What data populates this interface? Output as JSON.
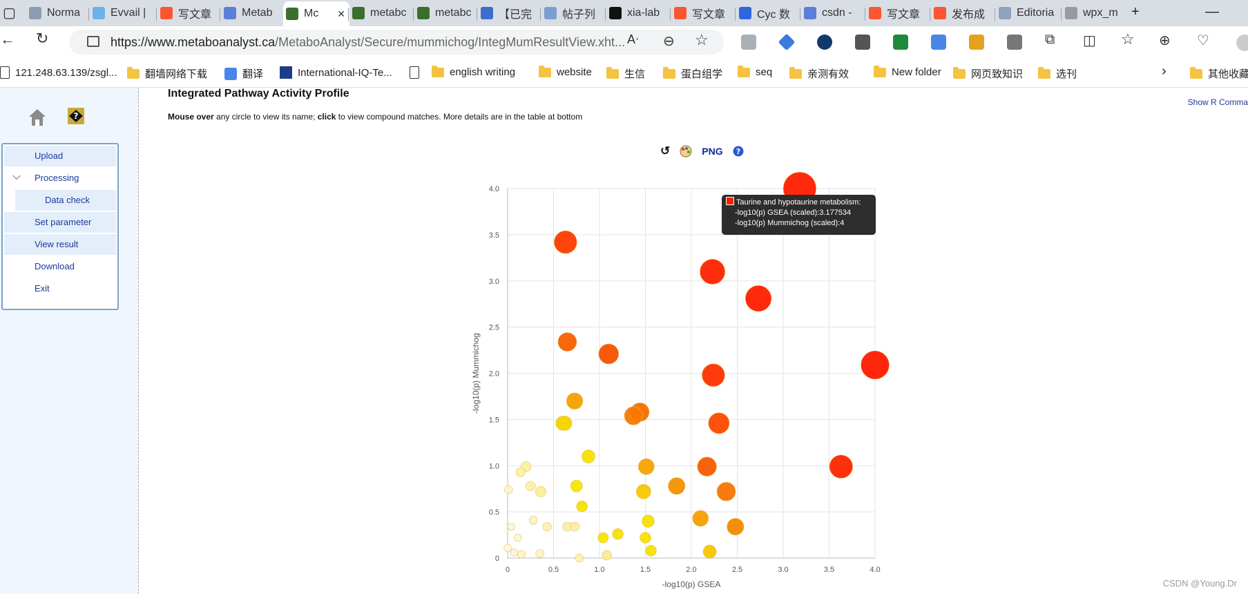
{
  "tabs": [
    {
      "label": "Norma",
      "color": "#8e9bb0"
    },
    {
      "label": "Evvail |",
      "color": "#6cb2e8"
    },
    {
      "label": "写文章",
      "color": "#fc5531"
    },
    {
      "label": "Metab",
      "color": "#5a7fd6"
    },
    {
      "label": "Mc",
      "color": "#3b6e2d",
      "active": true
    },
    {
      "label": "metabc",
      "color": "#3b6e2d"
    },
    {
      "label": "metabc",
      "color": "#3b6e2d"
    },
    {
      "label": "【已完",
      "color": "#3a6fd0"
    },
    {
      "label": "帖子列",
      "color": "#7a9fcf"
    },
    {
      "label": "xia-lab",
      "color": "#111111"
    },
    {
      "label": "写文章",
      "color": "#fc5531"
    },
    {
      "label": "Cyc 数",
      "color": "#2f66e0"
    },
    {
      "label": "csdn -",
      "color": "#5a7fd6"
    },
    {
      "label": "写文章",
      "color": "#fc5531"
    },
    {
      "label": "发布成",
      "color": "#fc5531"
    },
    {
      "label": "Editoria",
      "color": "#8fa2bd"
    },
    {
      "label": "wpx_m",
      "color": "#9a9a9a"
    }
  ],
  "url": {
    "host": "https://www.metaboanalyst.ca",
    "path": "/MetaboAnalyst/Secure/mummichog/IntegMumResultView.xht..."
  },
  "bookmarks": [
    {
      "label": "121.248.63.139/zsgl...",
      "kind": "page"
    },
    {
      "label": "翻墙网络下载",
      "kind": "folder"
    },
    {
      "label": "翻译",
      "kind": "g"
    },
    {
      "label": "International-IQ-Te...",
      "kind": "iq"
    },
    {
      "label": "",
      "kind": "page"
    },
    {
      "label": "english writing",
      "kind": "folder"
    },
    {
      "label": "website",
      "kind": "folder"
    },
    {
      "label": "生信",
      "kind": "folder"
    },
    {
      "label": "蛋白组学",
      "kind": "folder"
    },
    {
      "label": "seq",
      "kind": "folder"
    },
    {
      "label": "亲测有效",
      "kind": "folder"
    },
    {
      "label": "New folder",
      "kind": "folder"
    },
    {
      "label": "网页致知识",
      "kind": "folder"
    },
    {
      "label": "选刊",
      "kind": "folder"
    },
    {
      "label": "其他收藏",
      "kind": "folder"
    }
  ],
  "sidebar": {
    "items": [
      {
        "label": "Upload",
        "highlight": true
      },
      {
        "label": "Processing",
        "highlight": false,
        "expander": true
      },
      {
        "label": "Data check",
        "highlight": true,
        "indent": true
      },
      {
        "label": "Set parameter",
        "highlight": true
      },
      {
        "label": "View result",
        "highlight": true
      },
      {
        "label": "Download",
        "highlight": false
      },
      {
        "label": "Exit",
        "highlight": false
      }
    ]
  },
  "main": {
    "title": "Integrated Pathway Activity Profile",
    "instr_b1": "Mouse over",
    "instr_t1": " any circle to view its name; ",
    "instr_b2": "click",
    "instr_t2": " to view compound matches. More details are in the table at bottom",
    "show_r": "Show R Comma",
    "png_label": "PNG"
  },
  "tooltip": {
    "title": "Taurine and hypotaurine metabolism:",
    "line1": "-log10(p) GSEA (scaled):3.177534",
    "line2": "-log10(p) Mummichog (scaled):4"
  },
  "watermark": "CSDN @Young.Dr",
  "chart_data": {
    "type": "scatter",
    "xlabel": "-log10(p) GSEA",
    "ylabel": "-log10(p) Mummichog",
    "xlim": [
      0,
      4
    ],
    "ylim": [
      0,
      4
    ],
    "xticks": [
      "0",
      "0.5",
      "1.0",
      "1.5",
      "2.0",
      "2.5",
      "3.0",
      "3.5",
      "4.0"
    ],
    "yticks": [
      "0",
      "0.5",
      "1.0",
      "1.5",
      "2.0",
      "2.5",
      "3.0",
      "3.5",
      "4.0"
    ],
    "grid": true,
    "color_encoding": "combined significance (pale yellow to red)",
    "points": [
      {
        "x": 3.18,
        "y": 4.0,
        "s": 7.2,
        "color": "#ff1e00"
      },
      {
        "x": 0.63,
        "y": 3.42,
        "s": 5.0,
        "color": "#ff3a00"
      },
      {
        "x": 2.23,
        "y": 3.1,
        "s": 5.5,
        "color": "#ff2200"
      },
      {
        "x": 2.73,
        "y": 2.81,
        "s": 5.7,
        "color": "#ff1e00"
      },
      {
        "x": 0.65,
        "y": 2.34,
        "s": 4.1,
        "color": "#f75f00"
      },
      {
        "x": 1.1,
        "y": 2.21,
        "s": 4.4,
        "color": "#f75000"
      },
      {
        "x": 2.24,
        "y": 1.98,
        "s": 5.0,
        "color": "#ff3000"
      },
      {
        "x": 4.0,
        "y": 2.09,
        "s": 6.2,
        "color": "#ff1a00"
      },
      {
        "x": 0.73,
        "y": 1.7,
        "s": 3.6,
        "color": "#f59e00"
      },
      {
        "x": 1.44,
        "y": 1.58,
        "s": 4.1,
        "color": "#f76e00"
      },
      {
        "x": 1.37,
        "y": 1.54,
        "s": 4.0,
        "color": "#f77800"
      },
      {
        "x": 2.3,
        "y": 1.46,
        "s": 4.6,
        "color": "#fb4a00"
      },
      {
        "x": 0.6,
        "y": 1.46,
        "s": 3.1,
        "color": "#f5dc00"
      },
      {
        "x": 0.62,
        "y": 1.46,
        "s": 3.2,
        "color": "#f5d400"
      },
      {
        "x": 0.88,
        "y": 1.1,
        "s": 2.9,
        "color": "#f5e000"
      },
      {
        "x": 1.51,
        "y": 0.99,
        "s": 3.5,
        "color": "#f5a200"
      },
      {
        "x": 2.17,
        "y": 0.99,
        "s": 4.2,
        "color": "#f75c00"
      },
      {
        "x": 3.63,
        "y": 0.99,
        "s": 5.1,
        "color": "#ff2600"
      },
      {
        "x": 0.2,
        "y": 0.99,
        "s": 2.2,
        "color": "#fbf0a0"
      },
      {
        "x": 0.14,
        "y": 0.93,
        "s": 2.0,
        "color": "#faf0a6"
      },
      {
        "x": 0.75,
        "y": 0.78,
        "s": 2.6,
        "color": "#f5e600"
      },
      {
        "x": 0.25,
        "y": 0.78,
        "s": 2.1,
        "color": "#fbf0a8"
      },
      {
        "x": 0.36,
        "y": 0.72,
        "s": 2.3,
        "color": "#fbee9a"
      },
      {
        "x": 0.01,
        "y": 0.74,
        "s": 1.8,
        "color": "#fcf4c6"
      },
      {
        "x": 1.48,
        "y": 0.72,
        "s": 3.2,
        "color": "#f5c800"
      },
      {
        "x": 1.84,
        "y": 0.78,
        "s": 3.7,
        "color": "#f59000"
      },
      {
        "x": 2.38,
        "y": 0.72,
        "s": 4.1,
        "color": "#f77400"
      },
      {
        "x": 0.81,
        "y": 0.56,
        "s": 2.4,
        "color": "#f7e200"
      },
      {
        "x": 0.28,
        "y": 0.41,
        "s": 1.8,
        "color": "#fcf3c6"
      },
      {
        "x": 0.04,
        "y": 0.34,
        "s": 1.6,
        "color": "#fdf6d8"
      },
      {
        "x": 0.43,
        "y": 0.34,
        "s": 1.9,
        "color": "#fbf0b4"
      },
      {
        "x": 0.65,
        "y": 0.34,
        "s": 2.0,
        "color": "#faeeaa"
      },
      {
        "x": 0.73,
        "y": 0.34,
        "s": 2.0,
        "color": "#faeeaa"
      },
      {
        "x": 1.53,
        "y": 0.4,
        "s": 2.7,
        "color": "#f5e000"
      },
      {
        "x": 2.1,
        "y": 0.43,
        "s": 3.5,
        "color": "#f59e00"
      },
      {
        "x": 2.48,
        "y": 0.34,
        "s": 3.7,
        "color": "#f58800"
      },
      {
        "x": 1.2,
        "y": 0.26,
        "s": 2.4,
        "color": "#f6e000"
      },
      {
        "x": 1.04,
        "y": 0.22,
        "s": 2.3,
        "color": "#f7e400"
      },
      {
        "x": 1.5,
        "y": 0.22,
        "s": 2.4,
        "color": "#f6e200"
      },
      {
        "x": 0.11,
        "y": 0.22,
        "s": 1.6,
        "color": "#fdf6d8"
      },
      {
        "x": 0.0,
        "y": 0.11,
        "s": 1.6,
        "color": "#fdf8e2"
      },
      {
        "x": 0.07,
        "y": 0.06,
        "s": 1.6,
        "color": "#fdf7dc"
      },
      {
        "x": 0.15,
        "y": 0.04,
        "s": 1.7,
        "color": "#fcf3c6"
      },
      {
        "x": 0.35,
        "y": 0.05,
        "s": 1.8,
        "color": "#fcf2c2"
      },
      {
        "x": 1.08,
        "y": 0.03,
        "s": 2.1,
        "color": "#f9ec90"
      },
      {
        "x": 1.56,
        "y": 0.08,
        "s": 2.4,
        "color": "#f6e000"
      },
      {
        "x": 2.2,
        "y": 0.07,
        "s": 2.9,
        "color": "#f5c600"
      },
      {
        "x": 0.78,
        "y": 0.0,
        "s": 1.8,
        "color": "#fbf0b0"
      }
    ]
  }
}
